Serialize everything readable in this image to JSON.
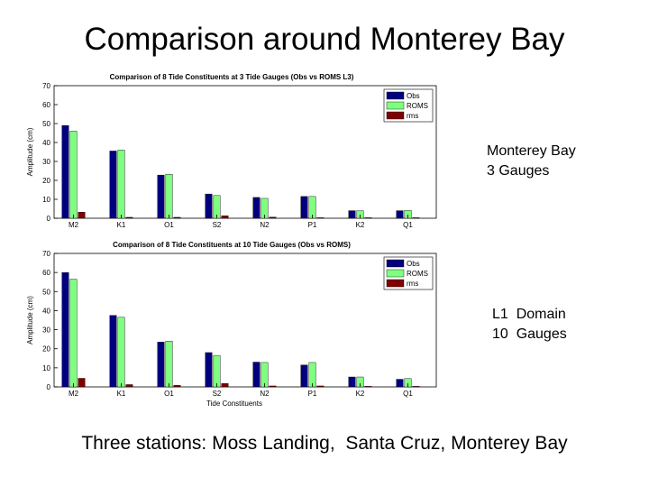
{
  "slide": {
    "title": "Comparison around Monterey Bay",
    "footer": "Three stations: Moss Landing,  Santa Cruz, Monterey Bay"
  },
  "labels": {
    "top": [
      "Monterey Bay",
      "3 Gauges"
    ],
    "bottom": [
      "L1  Domain",
      "10  Gauges"
    ]
  },
  "colors": {
    "obs": "#00007f",
    "roms": "#7fff7f",
    "rms": "#7f0000",
    "axis": "#000000"
  },
  "chart_data": [
    {
      "type": "bar",
      "title": "Comparison of 8 Tide Constituents at 3 Tide Gauges (Obs vs ROMS L3)",
      "xlabel": "",
      "ylabel": "Amplitude (cm)",
      "ylim": [
        0,
        70
      ],
      "yticks": [
        0,
        10,
        20,
        30,
        40,
        50,
        60,
        70
      ],
      "grid": false,
      "legend_position": "top-right",
      "categories": [
        "M2",
        "K1",
        "O1",
        "S2",
        "N2",
        "P1",
        "K2",
        "Q1"
      ],
      "series": [
        {
          "name": "Obs",
          "color_key": "obs",
          "values": [
            49,
            35.5,
            22.8,
            12.8,
            11,
            11.5,
            4,
            4
          ]
        },
        {
          "name": "ROMS",
          "color_key": "roms",
          "values": [
            46,
            36,
            23.2,
            12,
            10.5,
            11.5,
            4,
            4.2
          ]
        },
        {
          "name": "rms",
          "color_key": "rms",
          "values": [
            3.2,
            0.5,
            0.5,
            1.3,
            0.6,
            0.3,
            0.3,
            0.3
          ]
        }
      ]
    },
    {
      "type": "bar",
      "title": "Comparison of 8 Tide Constituents at 10 Tide Gauges (Obs vs ROMS)",
      "xlabel": "Tide Constituents",
      "ylabel": "Amplitude (cm)",
      "ylim": [
        0,
        70
      ],
      "yticks": [
        0,
        10,
        20,
        30,
        40,
        50,
        60,
        70
      ],
      "grid": false,
      "legend_position": "top-right",
      "categories": [
        "M2",
        "K1",
        "O1",
        "S2",
        "N2",
        "P1",
        "K2",
        "Q1"
      ],
      "series": [
        {
          "name": "Obs",
          "color_key": "obs",
          "values": [
            60,
            37.5,
            23.5,
            18,
            13,
            11.5,
            5.2,
            4
          ]
        },
        {
          "name": "ROMS",
          "color_key": "roms",
          "values": [
            56.5,
            36.5,
            24,
            16.5,
            12.8,
            12.8,
            5.2,
            4.4
          ]
        },
        {
          "name": "rms",
          "color_key": "rms",
          "values": [
            4.5,
            1.2,
            0.8,
            1.8,
            0.5,
            0.5,
            0.3,
            0.3
          ]
        }
      ]
    }
  ]
}
